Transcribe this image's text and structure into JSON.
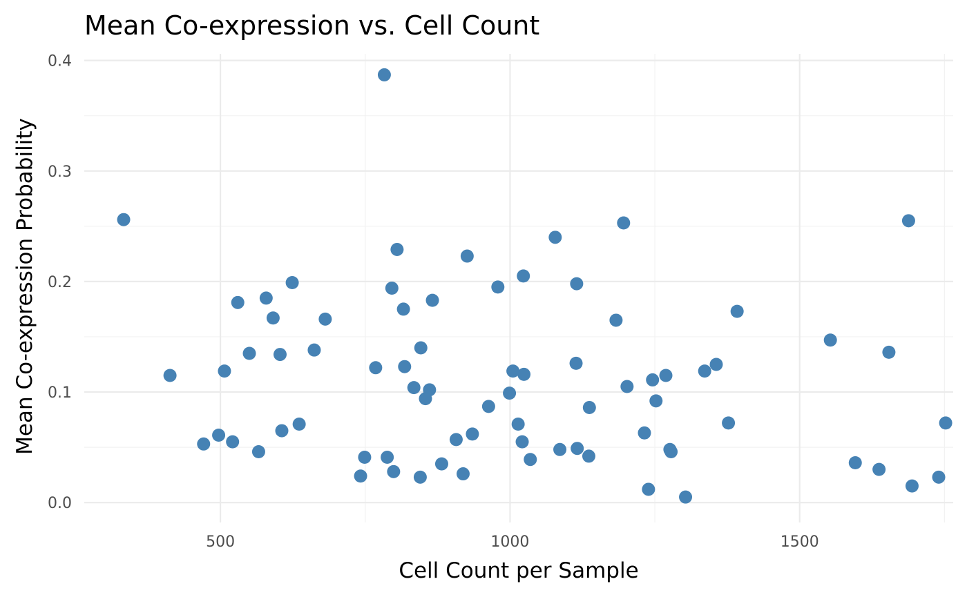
{
  "chart_data": {
    "type": "scatter",
    "title": "Mean Co-expression vs. Cell Count",
    "xlabel": "Cell Count per Sample",
    "ylabel": "Mean Co-expression Probability",
    "xlim": [
      265,
      1765
    ],
    "ylim": [
      -0.018,
      0.406
    ],
    "x_ticks": [
      500,
      1000,
      1500
    ],
    "x_tick_labels": [
      "500",
      "1000",
      "1500"
    ],
    "y_ticks": [
      0.0,
      0.1,
      0.2,
      0.3,
      0.4
    ],
    "y_tick_labels": [
      "0.0",
      "0.1",
      "0.2",
      "0.3",
      "0.4"
    ],
    "x_minor": [
      250,
      750,
      1250,
      1750
    ],
    "y_minor": [
      0.05,
      0.15,
      0.25,
      0.35
    ],
    "grid": true,
    "point_color": "#4682b4",
    "series": [
      {
        "x": [
          333,
          413,
          471,
          497,
          507,
          521,
          530,
          550,
          566,
          579,
          591,
          603,
          606,
          624,
          636,
          662,
          681,
          742,
          749,
          768,
          783,
          788,
          796,
          799,
          805,
          816,
          818,
          834,
          845,
          846,
          854,
          861,
          866,
          882,
          907,
          919,
          926,
          935,
          963,
          979,
          999,
          1005,
          1014,
          1021,
          1023,
          1024,
          1035,
          1078,
          1086,
          1114,
          1115,
          1116,
          1136,
          1137,
          1183,
          1196,
          1202,
          1232,
          1239,
          1246,
          1252,
          1269,
          1276,
          1278,
          1303,
          1336,
          1356,
          1377,
          1392,
          1553,
          1596,
          1637,
          1654,
          1688,
          1694,
          1740,
          1752
        ],
        "y": [
          0.256,
          0.115,
          0.053,
          0.061,
          0.119,
          0.055,
          0.181,
          0.135,
          0.046,
          0.185,
          0.167,
          0.134,
          0.065,
          0.199,
          0.071,
          0.138,
          0.166,
          0.024,
          0.041,
          0.122,
          0.387,
          0.041,
          0.194,
          0.028,
          0.229,
          0.175,
          0.123,
          0.104,
          0.023,
          0.14,
          0.094,
          0.102,
          0.183,
          0.035,
          0.057,
          0.026,
          0.223,
          0.062,
          0.087,
          0.195,
          0.099,
          0.119,
          0.071,
          0.055,
          0.205,
          0.116,
          0.039,
          0.24,
          0.048,
          0.126,
          0.198,
          0.049,
          0.042,
          0.086,
          0.165,
          0.253,
          0.105,
          0.063,
          0.012,
          0.111,
          0.092,
          0.115,
          0.048,
          0.046,
          0.005,
          0.119,
          0.125,
          0.072,
          0.173,
          0.147,
          0.036,
          0.03,
          0.136,
          0.255,
          0.015,
          0.023,
          0.072
        ]
      }
    ]
  }
}
